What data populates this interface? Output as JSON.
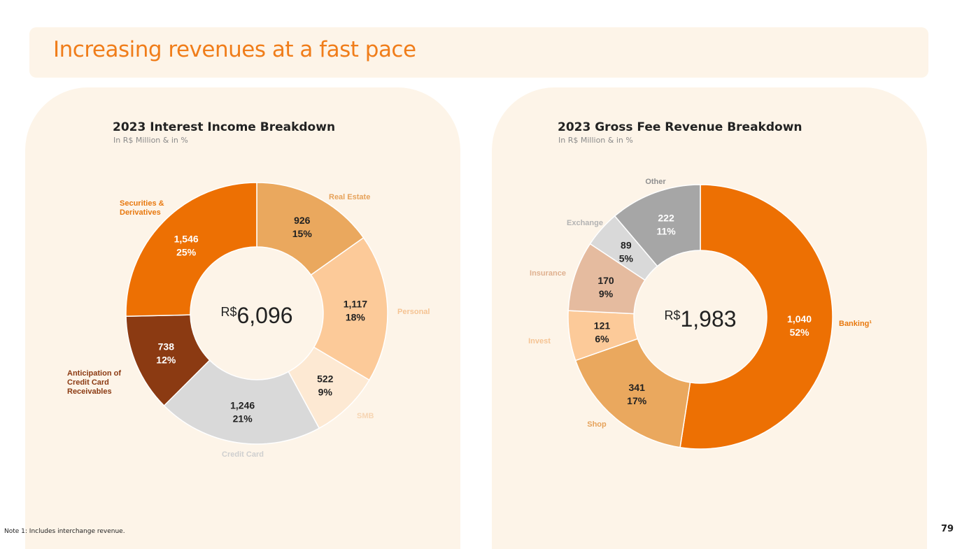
{
  "header": {
    "title": "Increasing revenues at a fast pace"
  },
  "chart_data": [
    {
      "type": "pie",
      "title": "2023 Interest Income Breakdown",
      "subtitle": "In R$ Million & in %",
      "center": {
        "currency": "R$",
        "value": "6,096"
      },
      "slices": [
        {
          "label": "Real Estate",
          "value": 926,
          "value_text": "926",
          "pct": "15%",
          "color": "#eaa85e",
          "value_color": "#222222",
          "label_color": "#e6a25a"
        },
        {
          "label": "Personal",
          "value": 1117,
          "value_text": "1,117",
          "pct": "18%",
          "color": "#fcca99",
          "value_color": "#222222",
          "label_color": "#f5c393"
        },
        {
          "label": "SMB",
          "value": 522,
          "value_text": "522",
          "pct": "9%",
          "color": "#fde9d3",
          "value_color": "#222222",
          "label_color": "#f6d5b3"
        },
        {
          "label": "Credit Card",
          "value": 1246,
          "value_text": "1,246",
          "pct": "21%",
          "color": "#d9d9d9",
          "value_color": "#222222",
          "label_color": "#cfcfcf"
        },
        {
          "label": "Anticipation of Credit Card Receivables",
          "value": 738,
          "value_text": "738",
          "pct": "12%",
          "color": "#8b3a12",
          "value_color": "#ffffff",
          "label_color": "#8b3a12"
        },
        {
          "label": "Securities & Derivatives",
          "value": 1546,
          "value_text": "1,546",
          "pct": "25%",
          "color": "#ed7003",
          "value_color": "#ffffff",
          "label_color": "#e8780e"
        }
      ]
    },
    {
      "type": "pie",
      "title": "2023 Gross Fee Revenue Breakdown",
      "subtitle": "In R$ Million & in %",
      "center": {
        "currency": "R$",
        "value": "1,983"
      },
      "slices": [
        {
          "label": "Banking¹",
          "value": 1040,
          "value_text": "1,040",
          "pct": "52%",
          "color": "#ed7003",
          "value_color": "#ffffff",
          "label_color": "#e8780e"
        },
        {
          "label": "Shop",
          "value": 341,
          "value_text": "341",
          "pct": "17%",
          "color": "#eaa85e",
          "value_color": "#222222",
          "label_color": "#e6a25a"
        },
        {
          "label": "Invest",
          "value": 121,
          "value_text": "121",
          "pct": "6%",
          "color": "#fcca99",
          "value_color": "#222222",
          "label_color": "#f5c393"
        },
        {
          "label": "Insurance",
          "value": 170,
          "value_text": "170",
          "pct": "9%",
          "color": "#e5bb9f",
          "value_color": "#222222",
          "label_color": "#dfb08f"
        },
        {
          "label": "Exchange",
          "value": 89,
          "value_text": "89",
          "pct": "5%",
          "color": "#d9d9d9",
          "value_color": "#222222",
          "label_color": "#b3b3b3"
        },
        {
          "label": "Other",
          "value": 222,
          "value_text": "222",
          "pct": "11%",
          "color": "#a6a6a6",
          "value_color": "#ffffff",
          "label_color": "#8f8f8f"
        }
      ]
    }
  ],
  "footer": {
    "note": "Note 1: Includes interchange revenue.",
    "page_number": "79"
  }
}
